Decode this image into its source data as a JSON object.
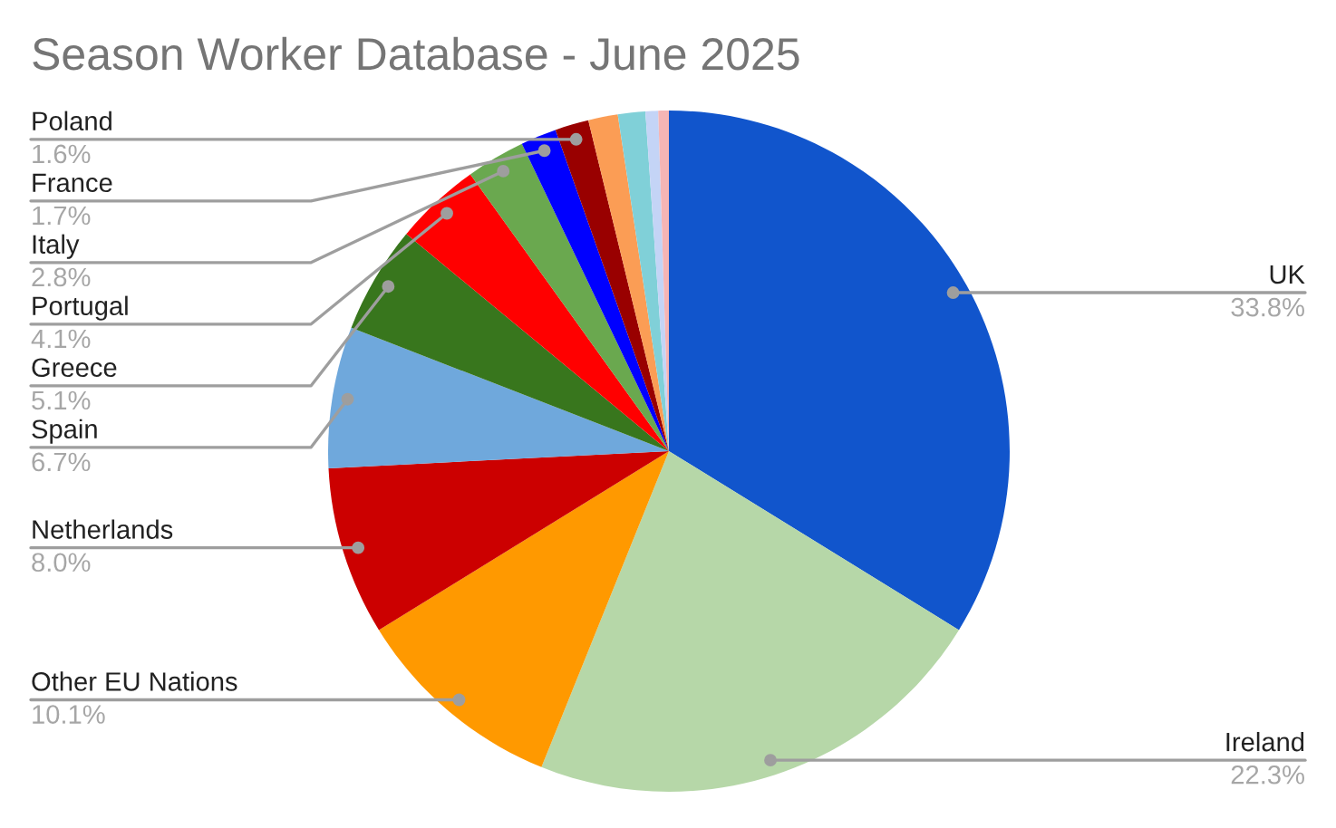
{
  "chart_data": {
    "type": "pie",
    "title": "Season Worker Database - June 2025",
    "categories": [
      "UK",
      "Ireland",
      "Other EU Nations",
      "Netherlands",
      "Spain",
      "Greece",
      "Portugal",
      "Italy",
      "France",
      "Poland",
      null,
      null,
      null,
      null
    ],
    "values": [
      33.8,
      22.3,
      10.1,
      8.0,
      6.7,
      5.1,
      4.1,
      2.8,
      1.7,
      1.6,
      1.4,
      1.3,
      0.6,
      0.5
    ],
    "colors": [
      "#1155cc",
      "#b6d7a8",
      "#ff9900",
      "#cc0000",
      "#6fa8dc",
      "#38761d",
      "#ff0000",
      "#6aa84f",
      "#0000ff",
      "#990000",
      "#fb9d55",
      "#80d0d8",
      "#c4d4f6",
      "#f5b5b5"
    ],
    "value_labels": [
      "33.8%",
      "22.3%",
      "10.1%",
      "8.0%",
      "6.7%",
      "5.1%",
      "4.1%",
      "2.8%",
      "1.7%",
      "1.6%",
      null,
      null,
      null,
      null
    ]
  }
}
